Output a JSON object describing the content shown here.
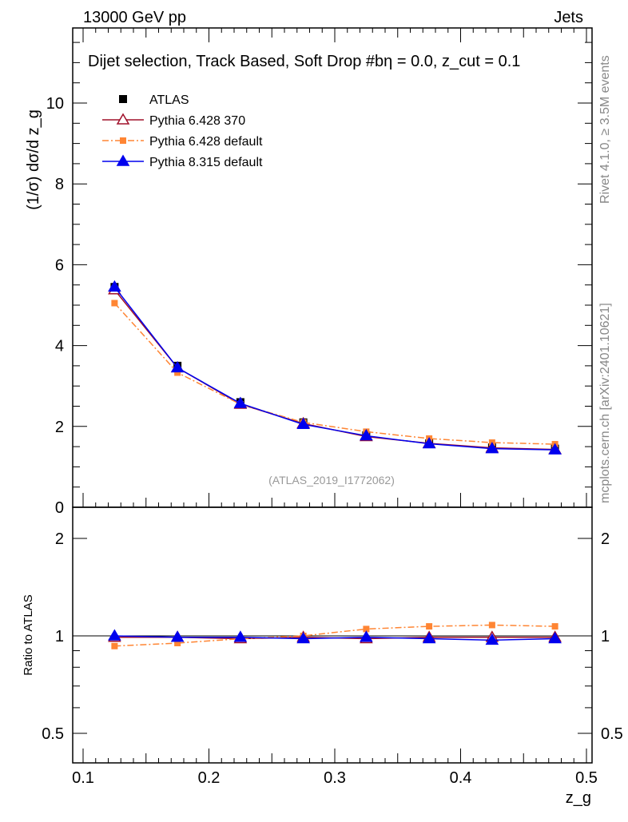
{
  "chart_data": [
    {
      "type": "line",
      "title": "Dijet selection, Track Based, Soft Drop #bη = 0.0, z_cut = 0.1",
      "top_left": "13000 GeV pp",
      "top_right": "Jets",
      "ylabel": "(1/σ) dσ/d z_g",
      "xlabel": "z_g",
      "xlim": [
        0.09,
        0.51
      ],
      "ylim": [
        0,
        11.86
      ],
      "yticks": [
        "0",
        "2",
        "4",
        "6",
        "8",
        "10"
      ],
      "x": [
        0.125,
        0.175,
        0.225,
        0.275,
        0.325,
        0.375,
        0.425,
        0.475
      ],
      "series": [
        {
          "name": "ATLAS",
          "color": "#000000",
          "values": [
            5.45,
            3.5,
            2.6,
            2.1,
            1.78,
            1.58,
            1.48,
            1.45
          ]
        },
        {
          "name": "Pythia 6.428 370",
          "color": "#a0102a",
          "values": [
            5.38,
            3.45,
            2.55,
            2.07,
            1.75,
            1.58,
            1.47,
            1.43
          ]
        },
        {
          "name": "Pythia 6.428 default",
          "color": "#ff8533",
          "values": [
            5.05,
            3.33,
            2.55,
            2.1,
            1.87,
            1.7,
            1.6,
            1.56
          ]
        },
        {
          "name": "Pythia 8.315 default",
          "color": "#0000ee",
          "values": [
            5.45,
            3.45,
            2.57,
            2.05,
            1.77,
            1.57,
            1.45,
            1.42
          ]
        }
      ],
      "watermark": "(ATLAS_2019_I1772062)",
      "side_label_1": "Rivet 4.1.0, ≥ 3.5M events",
      "side_label_2": "mcplots.cern.ch [arXiv:2401.10621]"
    },
    {
      "type": "line",
      "ylabel": "Ratio to ATLAS",
      "scale": "log",
      "ylim": [
        0.41,
        2.5
      ],
      "yticks": [
        "0.5",
        "1",
        "2"
      ],
      "xticks": [
        "0.1",
        "0.2",
        "0.3",
        "0.4",
        "0.5"
      ],
      "x": [
        0.125,
        0.175,
        0.225,
        0.275,
        0.325,
        0.375,
        0.425,
        0.475
      ],
      "series": [
        {
          "name": "Pythia 6.428 370",
          "values": [
            0.99,
            0.99,
            0.98,
            0.99,
            0.98,
            0.99,
            0.99,
            0.99
          ]
        },
        {
          "name": "Pythia 6.428 default",
          "values": [
            0.93,
            0.95,
            0.98,
            1.0,
            1.05,
            1.07,
            1.08,
            1.07
          ]
        },
        {
          "name": "Pythia 8.315 default",
          "values": [
            1.0,
            0.99,
            0.99,
            0.98,
            0.99,
            0.98,
            0.97,
            0.98
          ]
        }
      ]
    }
  ]
}
